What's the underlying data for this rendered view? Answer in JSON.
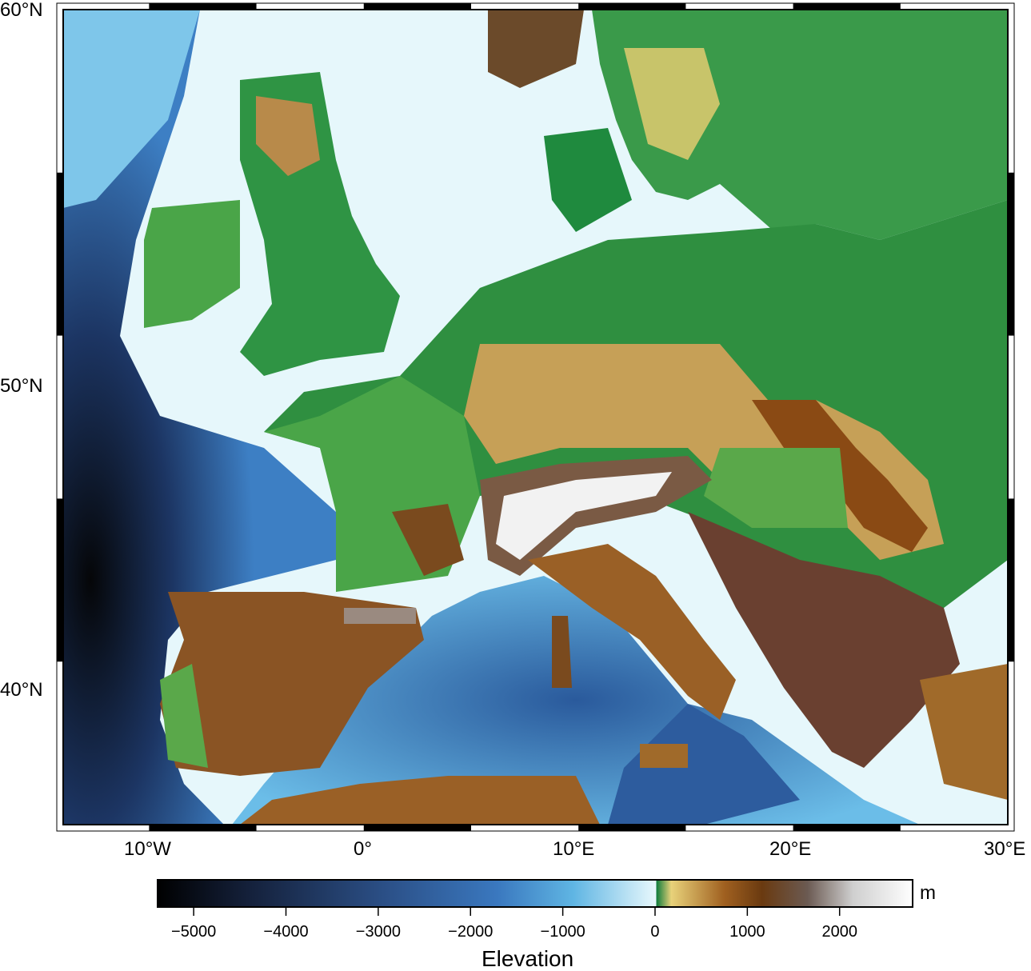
{
  "map": {
    "type": "elevation-relief",
    "region": {
      "lon": [
        -14,
        30
      ],
      "lat": [
        35,
        60
      ]
    },
    "axes": {
      "lat_ticks": [
        {
          "value": 60,
          "label": "60°N"
        },
        {
          "value": 50,
          "label": "50°N"
        },
        {
          "value": 40,
          "label": "40°N"
        }
      ],
      "lon_ticks": [
        {
          "value": -10,
          "label": "10°W"
        },
        {
          "value": 0,
          "label": "0°"
        },
        {
          "value": 10,
          "label": "10°E"
        },
        {
          "value": 20,
          "label": "20°E"
        },
        {
          "value": 30,
          "label": "30°E"
        }
      ]
    }
  },
  "colorbar": {
    "label": "Elevation",
    "unit": "m",
    "range": [
      -5400,
      2800
    ],
    "ticks": [
      {
        "value": -5000,
        "label": "−5000"
      },
      {
        "value": -4000,
        "label": "−4000"
      },
      {
        "value": -3000,
        "label": "−3000"
      },
      {
        "value": -2000,
        "label": "−2000"
      },
      {
        "value": -1000,
        "label": "−1000"
      },
      {
        "value": 0,
        "label": "0"
      },
      {
        "value": 1000,
        "label": "1000"
      },
      {
        "value": 2000,
        "label": "2000"
      }
    ],
    "colors": {
      "deep": "#050608",
      "ocean_mid": "#2b4f86",
      "ocean_light": "#5fb5e3",
      "shelf": "#e6f7fb",
      "lowland": "#0a7a3a",
      "plain": "#58a848",
      "upland": "#e6cf7a",
      "hills": "#8a4a14",
      "mountains": "#6b5a52",
      "peaks": "#ffffff"
    }
  }
}
